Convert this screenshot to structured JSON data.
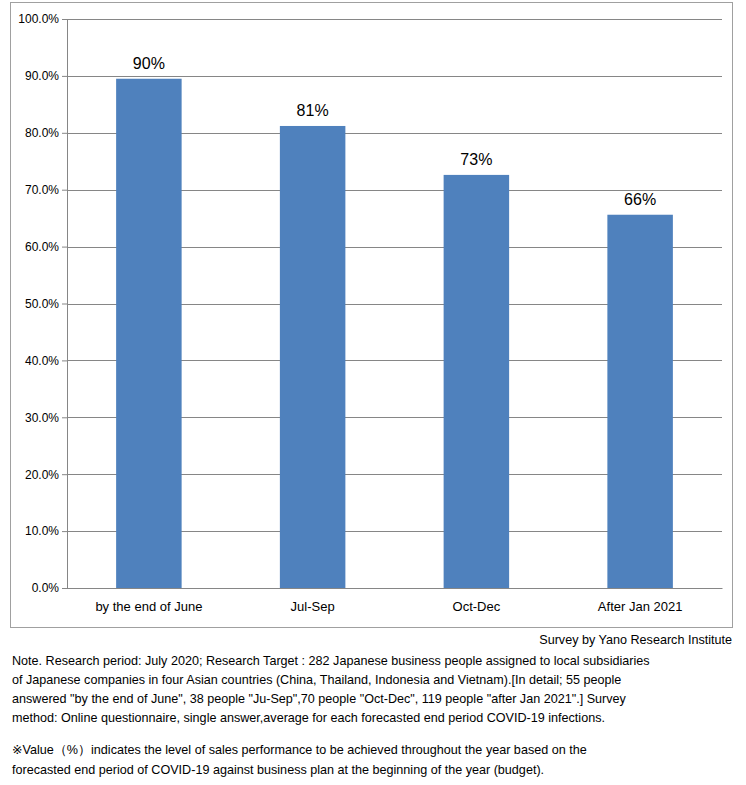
{
  "chart_data": {
    "type": "bar",
    "categories": [
      "by the end of June",
      "Jul-Sep",
      "Oct-Dec",
      "After Jan 2021"
    ],
    "values": [
      89.5,
      81.2,
      72.6,
      65.6
    ],
    "value_labels": [
      "90%",
      "81%",
      "73%",
      "66%"
    ],
    "color": "#4f81bd",
    "ylim": [
      0,
      100
    ],
    "yticks": [
      {
        "value": 0,
        "label": "0.0%"
      },
      {
        "value": 10,
        "label": "10.0%"
      },
      {
        "value": 20,
        "label": "20.0%"
      },
      {
        "value": 30,
        "label": "30.0%"
      },
      {
        "value": 40,
        "label": "40.0%"
      },
      {
        "value": 50,
        "label": "50.0%"
      },
      {
        "value": 60,
        "label": "60.0%"
      },
      {
        "value": 70,
        "label": "70.0%"
      },
      {
        "value": 80,
        "label": "80.0%"
      },
      {
        "value": 90,
        "label": "90.0%"
      },
      {
        "value": 100,
        "label": "100.0%"
      }
    ],
    "grid": true,
    "data_labels": true,
    "annotations": [
      "Survey by Yano Research Institute",
      "Note.  Research period: July 2020; Research Target : 282 Japanese business people assigned to local subsidiaries",
      "of Japanese companies in four Asian countries (China, Thailand, Indonesia and Vietnam).[In detail; 55 people",
      "answered \"by the end of June\", 38 people \"Ju-Sep\",70 people \"Oct-Dec\", 119 people \"after Jan 2021\".] Survey",
      "method: Online questionnaire, single answer,average for each forecasted end period COVID-19 infections.",
      "※Value（%）indicates the level of sales performance to be achieved throughout the year based on the",
      "forecasted end period of COVID-19 against business plan at the beginning of the year (budget)."
    ]
  }
}
